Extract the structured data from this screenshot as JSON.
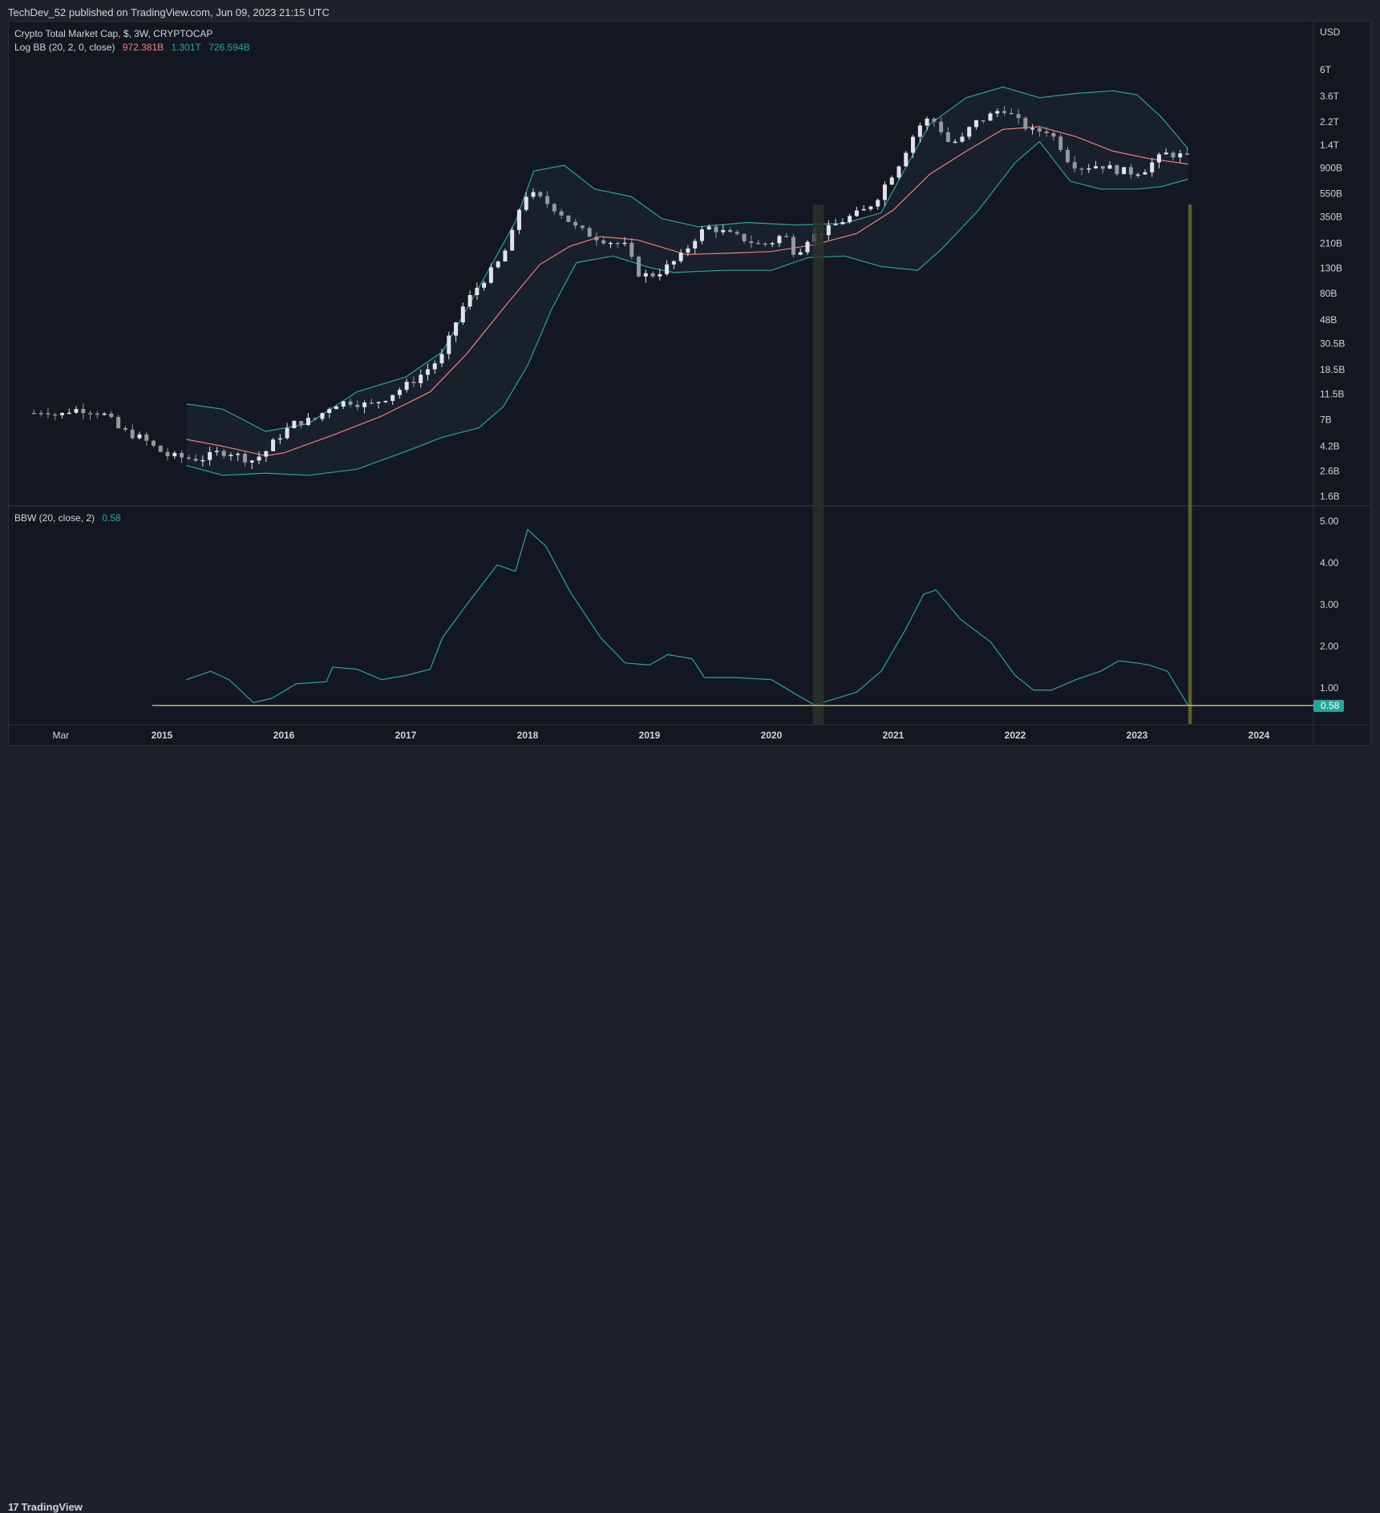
{
  "header": {
    "published": "TechDev_52 published on TradingView.com, Jun 09, 2023 21:15 UTC"
  },
  "legend": {
    "main_title": "Crypto Total Market Cap, $, 3W, CRYPTOCAP",
    "bb_label": "Log BB (20, 2, 0, close)",
    "bb_basis": "972.381B",
    "bb_upper": "1.301T",
    "bb_lower": "726.594B",
    "bbw_label": "BBW (20, close, 2)",
    "bbw_value": "0.58"
  },
  "footer": {
    "brand": "TradingView",
    "brand_mark": "17"
  },
  "colors": {
    "background": "#131722",
    "frame": "#1e222d",
    "band_fill": "#17212c",
    "band_line": "#26a69a",
    "basis_line": "#f28079",
    "candle_up": "#e0e3eb",
    "candle_down": "#e0e3eb",
    "bbw_line": "#26a69a",
    "threshold_line": "#e8d37a",
    "highlight_dark": "#2a332b",
    "highlight_olive": "#6b6a2c",
    "price_badge": "#26a69a"
  },
  "chart_data": {
    "type": "candlestick",
    "scale": "log",
    "currency": "USD",
    "timeframe": "3W",
    "y_axis": {
      "unit_label": "USD",
      "ticks": [
        {
          "label": "6T",
          "value": 6000
        },
        {
          "label": "3.6T",
          "value": 3600
        },
        {
          "label": "2.2T",
          "value": 2200
        },
        {
          "label": "1.4T",
          "value": 1400
        },
        {
          "label": "900B",
          "value": 900
        },
        {
          "label": "550B",
          "value": 550
        },
        {
          "label": "350B",
          "value": 350
        },
        {
          "label": "210B",
          "value": 210
        },
        {
          "label": "130B",
          "value": 130
        },
        {
          "label": "80B",
          "value": 80
        },
        {
          "label": "48B",
          "value": 48
        },
        {
          "label": "30.5B",
          "value": 30.5
        },
        {
          "label": "18.5B",
          "value": 18.5
        },
        {
          "label": "11.5B",
          "value": 11.5
        },
        {
          "label": "7B",
          "value": 7
        },
        {
          "label": "4.2B",
          "value": 4.2
        },
        {
          "label": "2.6B",
          "value": 2.6
        },
        {
          "label": "1.6B",
          "value": 1.6
        }
      ]
    },
    "x_axis": {
      "ticks": [
        {
          "label": "Mar",
          "t": 2014.17
        },
        {
          "label": "2015",
          "t": 2015.0
        },
        {
          "label": "2016",
          "t": 2016.0
        },
        {
          "label": "2017",
          "t": 2017.0
        },
        {
          "label": "2018",
          "t": 2018.0
        },
        {
          "label": "2019",
          "t": 2019.0
        },
        {
          "label": "2020",
          "t": 2020.0
        },
        {
          "label": "2021",
          "t": 2021.0
        },
        {
          "label": "2022",
          "t": 2022.0
        },
        {
          "label": "2023",
          "t": 2023.0
        },
        {
          "label": "2024",
          "t": 2024.0
        }
      ]
    },
    "price_path": [
      [
        2013.95,
        8
      ],
      [
        2014.05,
        8.5
      ],
      [
        2014.15,
        7.5
      ],
      [
        2014.25,
        8.5
      ],
      [
        2014.35,
        8.6
      ],
      [
        2014.45,
        8.3
      ],
      [
        2014.55,
        7.5
      ],
      [
        2014.65,
        5.8
      ],
      [
        2014.75,
        5.3
      ],
      [
        2014.85,
        4.8
      ],
      [
        2014.95,
        4.0
      ],
      [
        2015.05,
        3.5
      ],
      [
        2015.15,
        3.4
      ],
      [
        2015.25,
        3.3
      ],
      [
        2015.35,
        3.35
      ],
      [
        2015.45,
        3.7
      ],
      [
        2015.55,
        3.8
      ],
      [
        2015.65,
        3.4
      ],
      [
        2015.75,
        3.2
      ],
      [
        2015.85,
        3.8
      ],
      [
        2015.95,
        5.0
      ],
      [
        2016.1,
        6.7
      ],
      [
        2016.25,
        7.0
      ],
      [
        2016.4,
        9.5
      ],
      [
        2016.55,
        10.0
      ],
      [
        2016.7,
        9.2
      ],
      [
        2016.85,
        11.0
      ],
      [
        2017.0,
        13.5
      ],
      [
        2017.15,
        17.5
      ],
      [
        2017.3,
        24
      ],
      [
        2017.45,
        58
      ],
      [
        2017.6,
        95
      ],
      [
        2017.75,
        140
      ],
      [
        2017.85,
        210
      ],
      [
        2017.95,
        480
      ],
      [
        2018.0,
        560
      ],
      [
        2018.1,
        500
      ],
      [
        2018.25,
        400
      ],
      [
        2018.4,
        280
      ],
      [
        2018.55,
        240
      ],
      [
        2018.7,
        215
      ],
      [
        2018.8,
        200
      ],
      [
        2018.9,
        120
      ],
      [
        2019.0,
        112
      ],
      [
        2019.1,
        125
      ],
      [
        2019.25,
        160
      ],
      [
        2019.4,
        255
      ],
      [
        2019.5,
        290
      ],
      [
        2019.65,
        250
      ],
      [
        2019.8,
        225
      ],
      [
        2019.9,
        205
      ],
      [
        2020.0,
        215
      ],
      [
        2020.1,
        255
      ],
      [
        2020.2,
        170
      ],
      [
        2020.3,
        235
      ],
      [
        2020.45,
        270
      ],
      [
        2020.6,
        335
      ],
      [
        2020.75,
        390
      ],
      [
        2020.85,
        480
      ],
      [
        2020.95,
        700
      ],
      [
        2021.05,
        1000
      ],
      [
        2021.15,
        1600
      ],
      [
        2021.25,
        2300
      ],
      [
        2021.35,
        2200
      ],
      [
        2021.45,
        1500
      ],
      [
        2021.55,
        1500
      ],
      [
        2021.65,
        2100
      ],
      [
        2021.8,
        2500
      ],
      [
        2021.9,
        2900
      ],
      [
        2022.0,
        2300
      ],
      [
        2022.15,
        1800
      ],
      [
        2022.25,
        1900
      ],
      [
        2022.35,
        1500
      ],
      [
        2022.45,
        1000
      ],
      [
        2022.55,
        920
      ],
      [
        2022.7,
        960
      ],
      [
        2022.8,
        880
      ],
      [
        2022.95,
        830
      ],
      [
        2023.05,
        860
      ],
      [
        2023.15,
        1050
      ],
      [
        2023.25,
        1200
      ],
      [
        2023.35,
        1150
      ],
      [
        2023.42,
        1100
      ]
    ],
    "bb_basis_path": [
      [
        2015.2,
        4.8
      ],
      [
        2015.5,
        4.2
      ],
      [
        2015.85,
        3.5
      ],
      [
        2016.0,
        3.7
      ],
      [
        2016.4,
        5.2
      ],
      [
        2016.8,
        7.5
      ],
      [
        2017.2,
        12
      ],
      [
        2017.5,
        25
      ],
      [
        2017.8,
        60
      ],
      [
        2018.1,
        140
      ],
      [
        2018.35,
        200
      ],
      [
        2018.6,
        240
      ],
      [
        2018.9,
        225
      ],
      [
        2019.3,
        170
      ],
      [
        2019.7,
        175
      ],
      [
        2020.0,
        180
      ],
      [
        2020.35,
        205
      ],
      [
        2020.7,
        255
      ],
      [
        2021.0,
        400
      ],
      [
        2021.3,
        800
      ],
      [
        2021.6,
        1250
      ],
      [
        2021.9,
        1900
      ],
      [
        2022.2,
        2000
      ],
      [
        2022.5,
        1650
      ],
      [
        2022.8,
        1250
      ],
      [
        2023.1,
        1080
      ],
      [
        2023.42,
        972
      ]
    ],
    "bb_upper_path": [
      [
        2015.2,
        9.5
      ],
      [
        2015.5,
        8.6
      ],
      [
        2015.85,
        5.6
      ],
      [
        2016.2,
        6.5
      ],
      [
        2016.6,
        12
      ],
      [
        2017.0,
        16
      ],
      [
        2017.3,
        26
      ],
      [
        2017.6,
        90
      ],
      [
        2017.9,
        320
      ],
      [
        2018.05,
        850
      ],
      [
        2018.3,
        950
      ],
      [
        2018.55,
        600
      ],
      [
        2018.85,
        520
      ],
      [
        2019.1,
        340
      ],
      [
        2019.4,
        290
      ],
      [
        2019.8,
        315
      ],
      [
        2020.2,
        300
      ],
      [
        2020.6,
        310
      ],
      [
        2020.9,
        380
      ],
      [
        2021.1,
        900
      ],
      [
        2021.3,
        2100
      ],
      [
        2021.6,
        3500
      ],
      [
        2021.9,
        4300
      ],
      [
        2022.2,
        3500
      ],
      [
        2022.5,
        3800
      ],
      [
        2022.8,
        4000
      ],
      [
        2023.0,
        3700
      ],
      [
        2023.2,
        2400
      ],
      [
        2023.42,
        1301
      ]
    ],
    "bb_lower_path": [
      [
        2015.2,
        2.9
      ],
      [
        2015.5,
        2.4
      ],
      [
        2015.85,
        2.5
      ],
      [
        2016.2,
        2.4
      ],
      [
        2016.6,
        2.7
      ],
      [
        2017.0,
        3.8
      ],
      [
        2017.3,
        5.0
      ],
      [
        2017.6,
        6.0
      ],
      [
        2017.8,
        9.0
      ],
      [
        2018.0,
        20
      ],
      [
        2018.2,
        60
      ],
      [
        2018.4,
        145
      ],
      [
        2018.7,
        165
      ],
      [
        2019.0,
        132
      ],
      [
        2019.2,
        120
      ],
      [
        2019.6,
        125
      ],
      [
        2020.0,
        125
      ],
      [
        2020.3,
        160
      ],
      [
        2020.6,
        165
      ],
      [
        2020.9,
        135
      ],
      [
        2021.2,
        125
      ],
      [
        2021.4,
        190
      ],
      [
        2021.7,
        400
      ],
      [
        2022.0,
        1000
      ],
      [
        2022.2,
        1500
      ],
      [
        2022.45,
        700
      ],
      [
        2022.7,
        600
      ],
      [
        2023.0,
        600
      ],
      [
        2023.2,
        630
      ],
      [
        2023.42,
        726
      ]
    ],
    "bbw": {
      "label": "BBW (20, close, 2)",
      "current": 0.58,
      "threshold": 0.58,
      "ticks": [
        {
          "label": "5.00",
          "value": 5
        },
        {
          "label": "4.00",
          "value": 4
        },
        {
          "label": "3.00",
          "value": 3
        },
        {
          "label": "2.00",
          "value": 2
        },
        {
          "label": "1.00",
          "value": 1
        }
      ],
      "path": [
        [
          2015.2,
          1.2
        ],
        [
          2015.4,
          1.4
        ],
        [
          2015.55,
          1.2
        ],
        [
          2015.75,
          0.65
        ],
        [
          2015.9,
          0.75
        ],
        [
          2016.1,
          1.1
        ],
        [
          2016.35,
          1.15
        ],
        [
          2016.4,
          1.5
        ],
        [
          2016.6,
          1.45
        ],
        [
          2016.8,
          1.2
        ],
        [
          2017.0,
          1.3
        ],
        [
          2017.2,
          1.45
        ],
        [
          2017.3,
          2.2
        ],
        [
          2017.5,
          3.0
        ],
        [
          2017.75,
          3.95
        ],
        [
          2017.9,
          3.8
        ],
        [
          2018.0,
          4.8
        ],
        [
          2018.15,
          4.4
        ],
        [
          2018.35,
          3.3
        ],
        [
          2018.6,
          2.2
        ],
        [
          2018.8,
          1.6
        ],
        [
          2019.0,
          1.55
        ],
        [
          2019.15,
          1.8
        ],
        [
          2019.35,
          1.7
        ],
        [
          2019.45,
          1.25
        ],
        [
          2019.7,
          1.25
        ],
        [
          2020.0,
          1.2
        ],
        [
          2020.2,
          0.85
        ],
        [
          2020.35,
          0.6
        ],
        [
          2020.5,
          0.72
        ],
        [
          2020.7,
          0.9
        ],
        [
          2020.9,
          1.4
        ],
        [
          2021.1,
          2.4
        ],
        [
          2021.25,
          3.25
        ],
        [
          2021.35,
          3.35
        ],
        [
          2021.55,
          2.65
        ],
        [
          2021.8,
          2.1
        ],
        [
          2022.0,
          1.3
        ],
        [
          2022.15,
          0.95
        ],
        [
          2022.3,
          0.95
        ],
        [
          2022.5,
          1.2
        ],
        [
          2022.7,
          1.4
        ],
        [
          2022.85,
          1.65
        ],
        [
          2023.0,
          1.6
        ],
        [
          2023.1,
          1.55
        ],
        [
          2023.25,
          1.4
        ],
        [
          2023.42,
          0.58
        ]
      ]
    },
    "highlights": [
      {
        "from": 2020.34,
        "to": 2020.43,
        "color": "dark"
      },
      {
        "from": 2023.42,
        "to": 2023.45,
        "color": "olive"
      }
    ]
  }
}
